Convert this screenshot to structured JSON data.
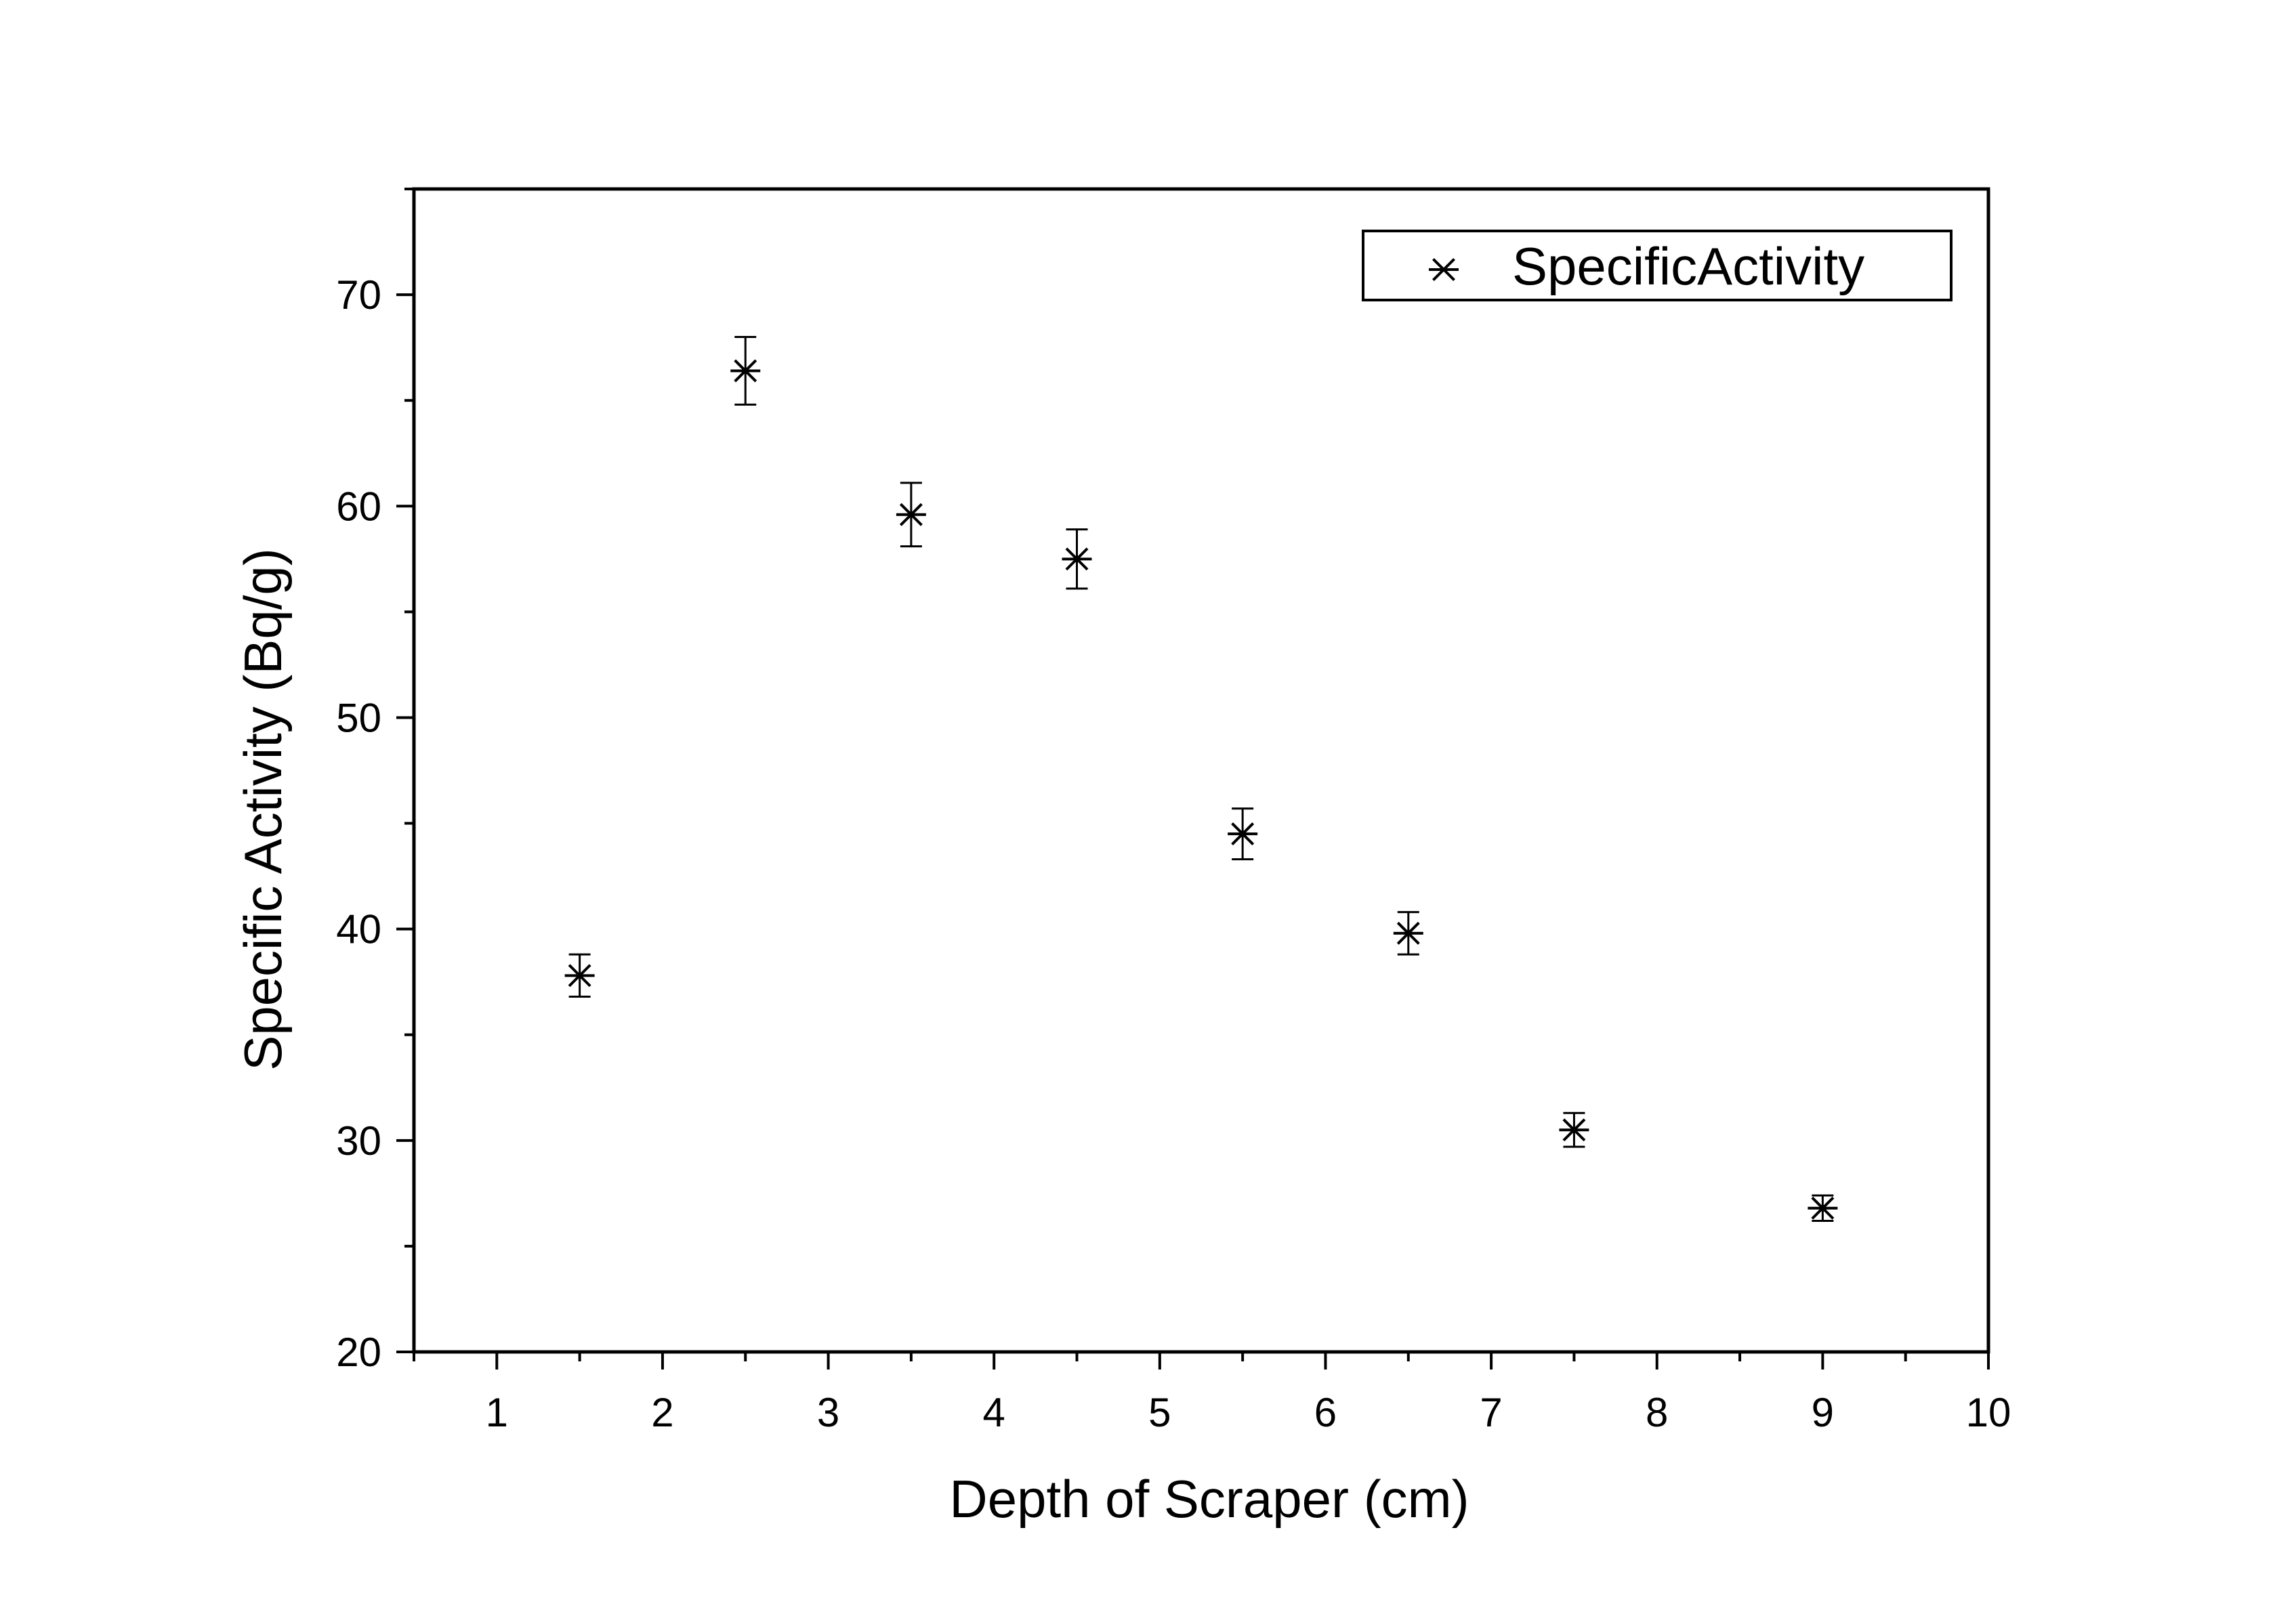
{
  "chart_data": {
    "type": "scatter",
    "xlabel": "Depth of Scraper (cm)",
    "ylabel": "Specific Activity (Bq/g)",
    "xlim": [
      0.5,
      10
    ],
    "ylim": [
      20,
      75
    ],
    "x_ticks": [
      1,
      2,
      3,
      4,
      5,
      6,
      7,
      8,
      9,
      10
    ],
    "y_ticks": [
      20,
      30,
      40,
      50,
      60,
      70
    ],
    "grid": false,
    "legend_position": "top-right",
    "marker": "asterisk",
    "series": [
      {
        "name": "SpecificActivity",
        "x": [
          1.5,
          2.5,
          3.5,
          4.5,
          5.5,
          6.5,
          7.5,
          9
        ],
        "y": [
          37.8,
          66.4,
          59.6,
          57.5,
          44.5,
          39.8,
          30.5,
          26.8
        ],
        "error": [
          1.0,
          1.6,
          1.5,
          1.4,
          1.2,
          1.0,
          0.8,
          0.6
        ]
      }
    ]
  }
}
